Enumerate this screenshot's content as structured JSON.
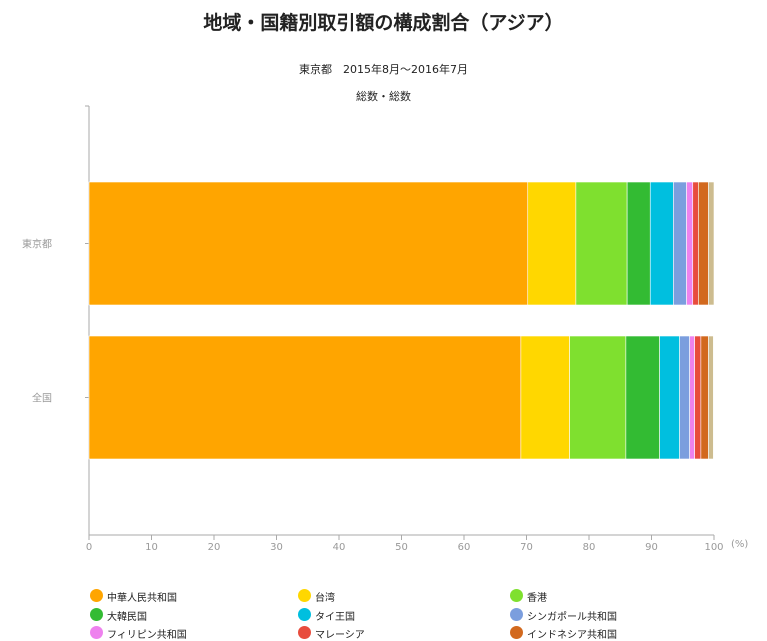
{
  "title": "地域・国籍別取引額の構成割合（アジア）",
  "subtitle1": "東京都　2015年8月〜2016年7月",
  "subtitle2": "総数・総数",
  "chart_data": {
    "type": "bar",
    "orientation": "horizontal",
    "stacked": true,
    "categories": [
      "東京都",
      "全国"
    ],
    "xlim": [
      0,
      100
    ],
    "xticks": [
      "0",
      "10",
      "20",
      "30",
      "40",
      "50",
      "60",
      "70",
      "80",
      "90",
      "100"
    ],
    "xunit": "(%)",
    "grid": false,
    "legend_position": "bottom",
    "series": [
      {
        "name": "中華人民共和国",
        "color": "#ffa500",
        "values": [
          70.2,
          69.1
        ]
      },
      {
        "name": "台湾",
        "color": "#ffd700",
        "values": [
          7.7,
          7.8
        ]
      },
      {
        "name": "香港",
        "color": "#7fe02f",
        "values": [
          8.2,
          9.0
        ]
      },
      {
        "name": "大韓民国",
        "color": "#33bb33",
        "values": [
          3.7,
          5.4
        ]
      },
      {
        "name": "タイ王国",
        "color": "#00bfdf",
        "values": [
          3.7,
          3.2
        ]
      },
      {
        "name": "シンガポール共和国",
        "color": "#7b9ede",
        "values": [
          2.1,
          1.6
        ]
      },
      {
        "name": "フィリピン共和国",
        "color": "#ee82ee",
        "values": [
          1.0,
          0.8
        ]
      },
      {
        "name": "マレーシア",
        "color": "#e84c3d",
        "values": [
          0.9,
          1.0
        ]
      },
      {
        "name": "インドネシア共和国",
        "color": "#d2691e",
        "values": [
          1.6,
          1.2
        ]
      },
      {
        "name": "",
        "color": "#cdbc8f",
        "values": [
          0.9,
          0.8
        ]
      }
    ]
  }
}
